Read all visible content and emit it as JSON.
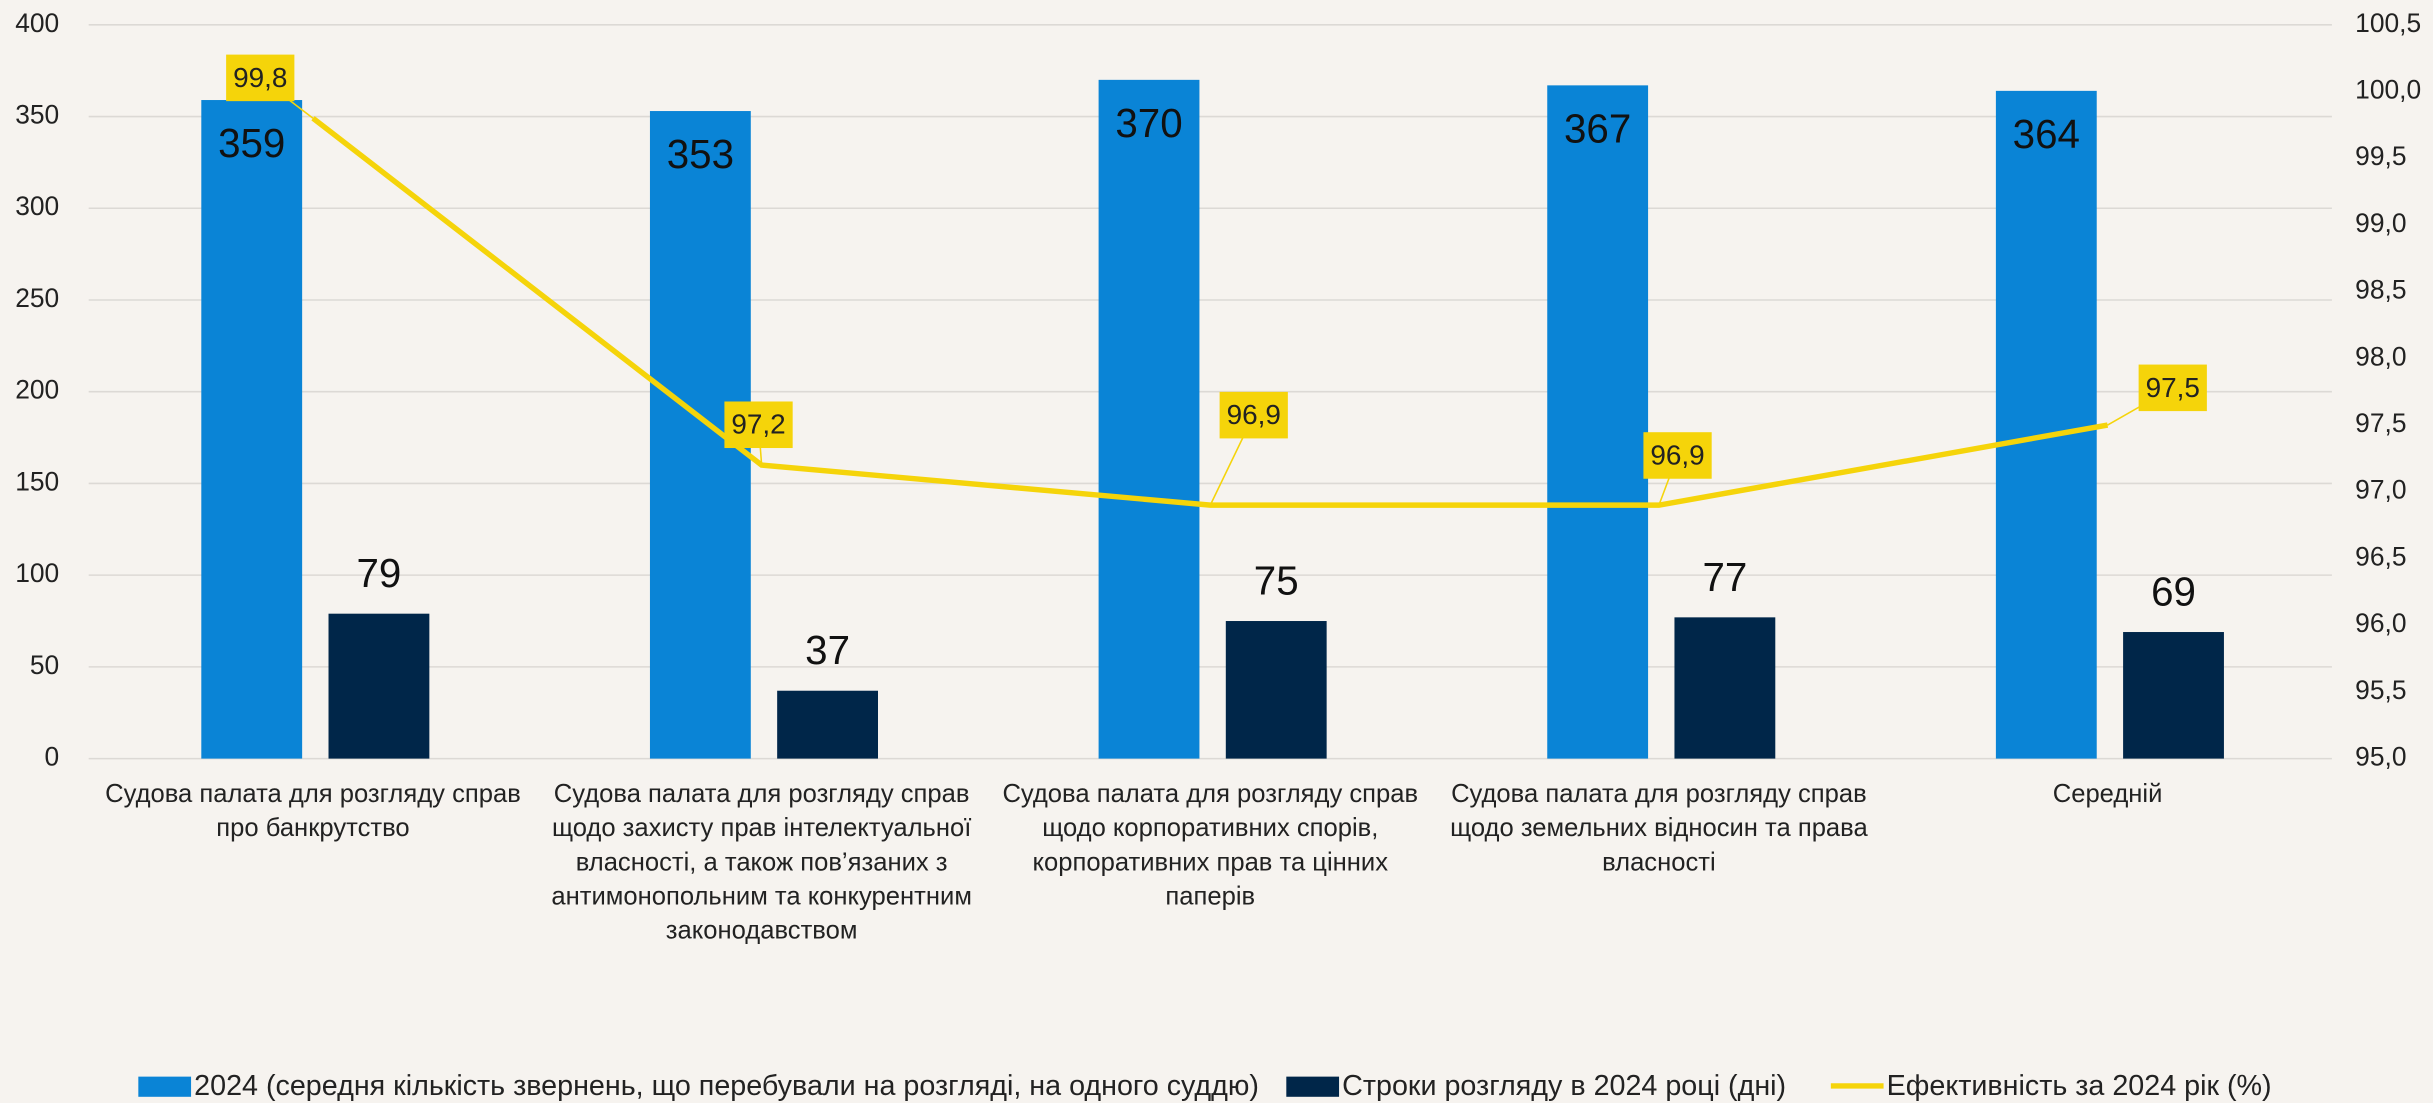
{
  "chart_data": {
    "type": "bar_line",
    "categories": [
      "Судова палата для розгляду справ про банкрутство",
      "Судова палата для розгляду справ щодо захисту прав інтелектуальної власності, а також пов’язаних з антимонопольним та конкурентним законодавством",
      "Судова палата для розгляду справ щодо корпоративних спорів, корпоративних прав та цінних паперів",
      "Судова палата для розгляду справ щодо земельних відносин та права власності",
      "Середній"
    ],
    "series": [
      {
        "name": "2024 (середня кількість звернень, що перебували на розгляді, на одного суддю)",
        "color": "#0a84d6",
        "values": [
          359,
          353,
          370,
          367,
          364
        ]
      },
      {
        "name": "Строки розгляду в 2024 році  (дні)",
        "color": "#002649",
        "values": [
          79,
          37,
          75,
          77,
          69
        ]
      },
      {
        "name": "Ефективність за 2024 рік (%)",
        "color": "#f5d40a",
        "axis": "y2",
        "values": [
          99.8,
          97.2,
          96.9,
          96.9,
          97.5
        ],
        "value_labels": [
          "99,8",
          "97,2",
          "96,9",
          "96,9",
          "97,5"
        ]
      }
    ],
    "ylim": [
      0,
      400
    ],
    "yticks": [
      0,
      50,
      100,
      150,
      200,
      250,
      300,
      350,
      400
    ],
    "y2lim": [
      95,
      100.5
    ],
    "y2ticks": [
      {
        "value": 95,
        "label": "95,0"
      },
      {
        "value": 95.5,
        "label": "95,5"
      },
      {
        "value": 96,
        "label": "96,0"
      },
      {
        "value": 96.5,
        "label": "96,5"
      },
      {
        "value": 97,
        "label": "97,0"
      },
      {
        "value": 97.5,
        "label": "97,5"
      },
      {
        "value": 98,
        "label": "98,0"
      },
      {
        "value": 98.5,
        "label": "98,5"
      },
      {
        "value": 99,
        "label": "99,0"
      },
      {
        "value": 99.5,
        "label": "99,5"
      },
      {
        "value": 100,
        "label": "100,0"
      },
      {
        "value": 100.5,
        "label": "100,5"
      }
    ],
    "grid": true
  }
}
